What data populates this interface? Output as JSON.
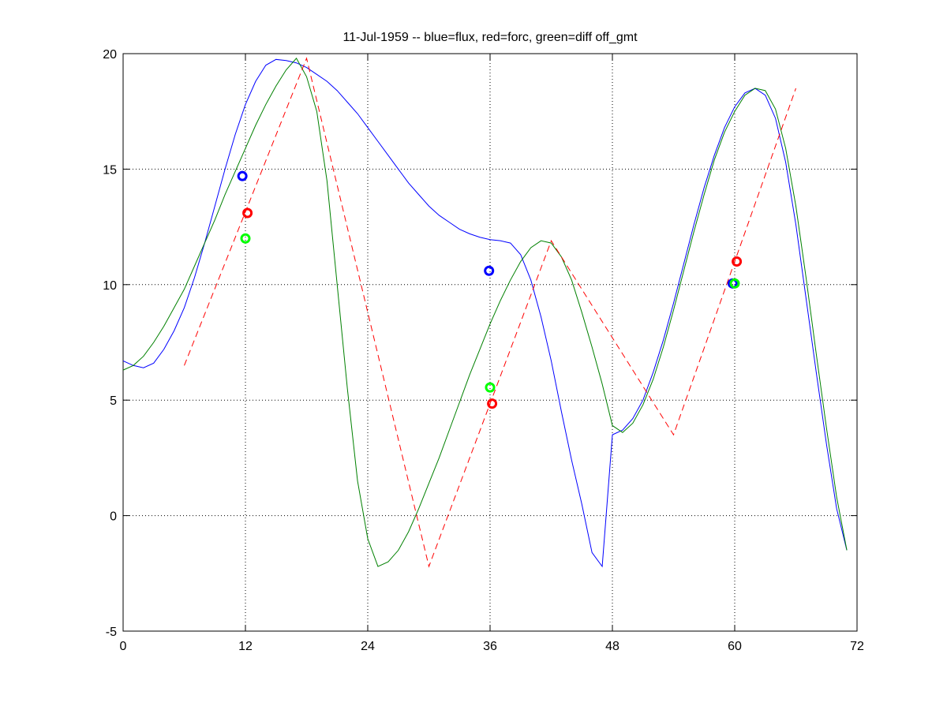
{
  "chart_data": {
    "type": "line",
    "title": "11-Jul-1959 -- blue=flux, red=forc, green=diff off_gmt",
    "xlim": [
      0,
      72
    ],
    "xticks": [
      0,
      12,
      24,
      36,
      48,
      60,
      72
    ],
    "ylim": [
      -5,
      20
    ],
    "yticks": [
      -5,
      0,
      5,
      10,
      15,
      20
    ],
    "grid": true,
    "series": [
      {
        "style": "solid",
        "color": "#0000ff",
        "x": [
          0,
          1,
          2,
          3,
          4,
          5,
          6,
          7,
          8,
          9,
          10,
          11,
          12,
          13,
          14,
          15,
          16,
          17,
          18,
          19,
          20,
          21,
          22,
          23,
          24,
          25,
          26,
          27,
          28,
          29,
          30,
          31,
          32,
          33,
          34,
          35,
          36,
          37,
          38,
          39,
          40,
          41,
          42,
          43,
          44,
          45,
          46,
          47,
          48,
          49,
          50,
          51,
          52,
          53,
          54,
          55,
          56,
          57,
          58,
          59,
          60,
          61,
          62,
          63,
          64,
          65,
          66,
          67,
          68,
          69,
          70,
          71
        ],
        "values": [
          6.7,
          6.5,
          6.4,
          6.6,
          7.2,
          8.0,
          9.0,
          10.3,
          11.8,
          13.4,
          15.0,
          16.5,
          17.8,
          18.8,
          19.5,
          19.75,
          19.7,
          19.6,
          19.4,
          19.1,
          18.8,
          18.4,
          17.9,
          17.4,
          16.8,
          16.2,
          15.6,
          15.0,
          14.4,
          13.9,
          13.4,
          13.0,
          12.7,
          12.4,
          12.2,
          12.05,
          11.95,
          11.9,
          11.8,
          11.3,
          10.2,
          8.6,
          6.7,
          4.5,
          2.4,
          0.5,
          -1.6,
          -2.2,
          3.5,
          3.7,
          4.2,
          5.0,
          6.2,
          7.6,
          9.2,
          10.9,
          12.6,
          14.2,
          15.6,
          16.8,
          17.7,
          18.3,
          18.5,
          18.2,
          17.2,
          15.3,
          12.6,
          9.4,
          6.2,
          3.1,
          0.3,
          -1.5
        ]
      },
      {
        "style": "solid",
        "color": "#008000",
        "x": [
          0,
          1,
          2,
          3,
          4,
          5,
          6,
          7,
          8,
          9,
          10,
          11,
          12,
          13,
          14,
          15,
          16,
          17,
          18,
          19,
          20,
          21,
          22,
          23,
          24,
          25,
          26,
          27,
          28,
          29,
          30,
          31,
          32,
          33,
          34,
          35,
          36,
          37,
          38,
          39,
          40,
          41,
          42,
          43,
          44,
          45,
          46,
          47,
          48,
          49,
          50,
          51,
          52,
          53,
          54,
          55,
          56,
          57,
          58,
          59,
          60,
          61,
          62,
          63,
          64,
          65,
          66,
          67,
          68,
          69,
          70,
          71
        ],
        "values": [
          6.3,
          6.5,
          6.9,
          7.5,
          8.2,
          9.0,
          9.8,
          10.8,
          11.8,
          12.8,
          13.9,
          14.9,
          15.9,
          16.9,
          17.8,
          18.6,
          19.3,
          19.8,
          19.0,
          17.5,
          14.5,
          10.0,
          5.5,
          1.5,
          -1.0,
          -2.2,
          -2.0,
          -1.5,
          -0.7,
          0.3,
          1.4,
          2.5,
          3.7,
          4.9,
          6.1,
          7.2,
          8.3,
          9.3,
          10.2,
          11.0,
          11.6,
          11.9,
          11.8,
          11.2,
          10.2,
          8.8,
          7.3,
          5.7,
          3.9,
          3.6,
          4.0,
          4.8,
          5.9,
          7.3,
          8.9,
          10.6,
          12.3,
          13.9,
          15.4,
          16.6,
          17.5,
          18.2,
          18.5,
          18.4,
          17.6,
          15.9,
          13.4,
          10.3,
          7.0,
          3.8,
          0.8,
          -1.5
        ]
      },
      {
        "style": "dashed",
        "color": "#ff0000",
        "x": [
          6,
          18,
          30,
          42,
          54,
          66
        ],
        "values": [
          6.5,
          19.8,
          -2.2,
          11.9,
          3.5,
          18.5
        ]
      },
      {
        "style": "marker",
        "color": "#0000ff",
        "x": [
          11.7,
          35.9,
          59.8
        ],
        "values": [
          14.7,
          10.6,
          10.05
        ]
      },
      {
        "style": "marker",
        "color": "#ff0000",
        "x": [
          12.2,
          36.2,
          60.2
        ],
        "values": [
          13.1,
          4.85,
          11.0
        ]
      },
      {
        "style": "marker",
        "color": "#00ff00",
        "x": [
          12.0,
          36.0,
          60.0
        ],
        "values": [
          12.0,
          5.55,
          10.05
        ]
      }
    ]
  }
}
